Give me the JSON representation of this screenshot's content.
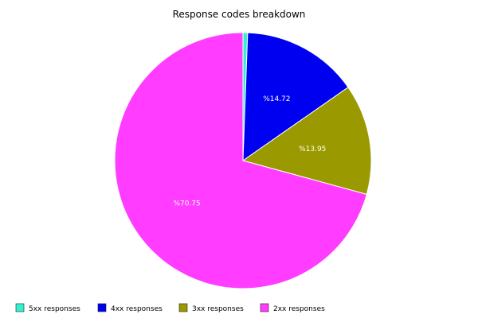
{
  "chart_data": {
    "type": "pie",
    "title": "Response codes breakdown",
    "start_angle_deg": 0,
    "direction": "clockwise",
    "legend_position": "bottom",
    "slices": [
      {
        "label": "5xx responses",
        "value": 0.58,
        "color": "#33f0d0",
        "data_label": ""
      },
      {
        "label": "4xx responses",
        "value": 14.72,
        "color": "#0000f0",
        "data_label": "%14.72"
      },
      {
        "label": "3xx responses",
        "value": 13.95,
        "color": "#9a9a00",
        "data_label": "%13.95"
      },
      {
        "label": "2xx responses",
        "value": 70.75,
        "color": "#ff3cff",
        "data_label": "%70.75"
      }
    ]
  }
}
